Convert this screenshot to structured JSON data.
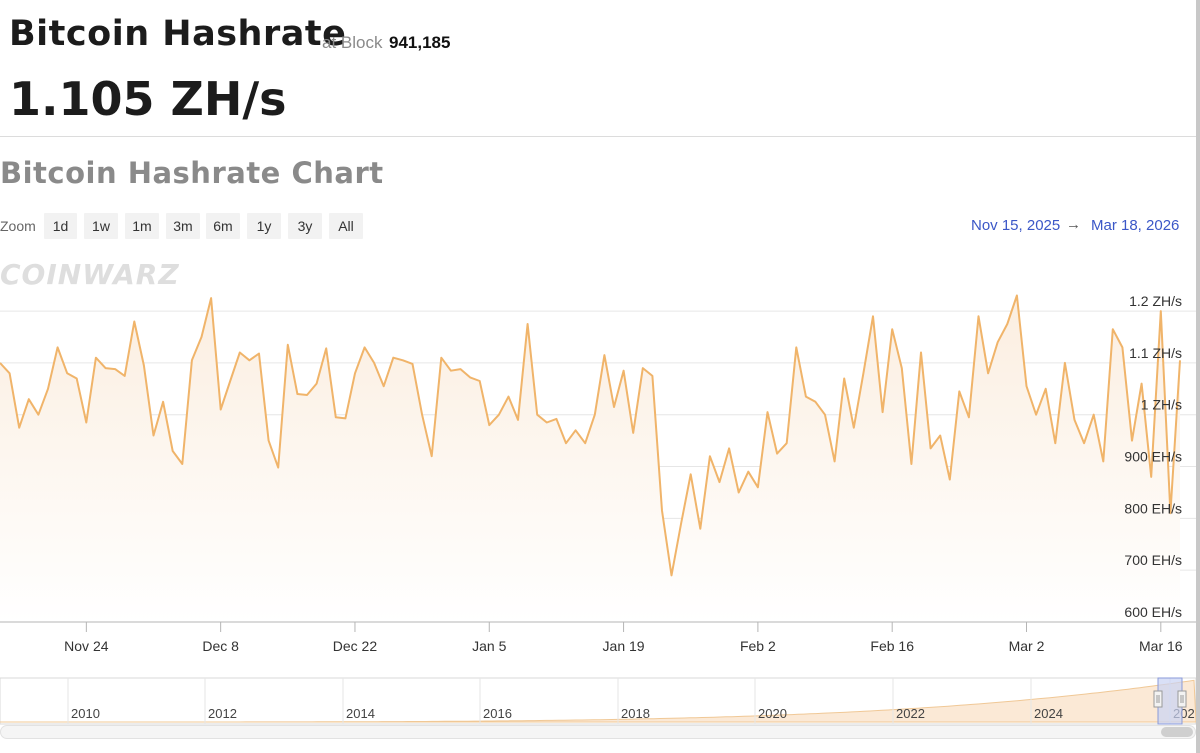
{
  "header": {
    "title": "Bitcoin Hashrate",
    "block_label": "at Block",
    "block_number": "941,185",
    "current_value": "1.105 ZH/s"
  },
  "chart_section": {
    "title": "Bitcoin Hashrate Chart",
    "zoom_label": "Zoom",
    "zoom_buttons": [
      "1d",
      "1w",
      "1m",
      "3m",
      "6m",
      "1y",
      "3y",
      "All"
    ],
    "range_from": "Nov 15, 2025",
    "range_arrow": "→",
    "range_to": "Mar 18, 2026",
    "watermark": "COINWARZ"
  },
  "colors": {
    "line": "#f0b46a",
    "fill_top": "#fbeee0",
    "accent_blue": "#3b57c7"
  },
  "chart_data": {
    "type": "area",
    "x_start": "2025-11-15",
    "x_end": "2026-03-18",
    "ylim": [
      600,
      1260
    ],
    "yticks": [
      600,
      700,
      800,
      900,
      1000,
      1100,
      1200
    ],
    "ytick_labels": [
      "600 EH/s",
      "700 EH/s",
      "800 EH/s",
      "900 EH/s",
      "1 ZH/s",
      "1.1 ZH/s",
      "1.2 ZH/s"
    ],
    "xticks": [
      "2025-11-24",
      "2025-12-08",
      "2025-12-22",
      "2026-01-05",
      "2026-01-19",
      "2026-02-02",
      "2026-02-16",
      "2026-03-02",
      "2026-03-16"
    ],
    "xtick_labels": [
      "Nov 24",
      "Dec 8",
      "Dec 22",
      "Jan 5",
      "Jan 19",
      "Feb 2",
      "Feb 16",
      "Mar 2",
      "Mar 16"
    ],
    "grid": true,
    "legend": "none",
    "series": [
      {
        "name": "",
        "points": [
          [
            "2025-11-15",
            1100
          ],
          [
            "2025-11-16",
            1080
          ],
          [
            "2025-11-17",
            975
          ],
          [
            "2025-11-18",
            1030
          ],
          [
            "2025-11-19",
            1000
          ],
          [
            "2025-11-20",
            1050
          ],
          [
            "2025-11-21",
            1130
          ],
          [
            "2025-11-22",
            1080
          ],
          [
            "2025-11-23",
            1070
          ],
          [
            "2025-11-24",
            985
          ],
          [
            "2025-11-25",
            1110
          ],
          [
            "2025-11-26",
            1090
          ],
          [
            "2025-11-27",
            1088
          ],
          [
            "2025-11-28",
            1075
          ],
          [
            "2025-11-29",
            1180
          ],
          [
            "2025-11-30",
            1095
          ],
          [
            "2025-12-01",
            960
          ],
          [
            "2025-12-02",
            1025
          ],
          [
            "2025-12-03",
            930
          ],
          [
            "2025-12-04",
            905
          ],
          [
            "2025-12-05",
            1105
          ],
          [
            "2025-12-06",
            1150
          ],
          [
            "2025-12-07",
            1225
          ],
          [
            "2025-12-08",
            1010
          ],
          [
            "2025-12-09",
            1065
          ],
          [
            "2025-12-10",
            1120
          ],
          [
            "2025-12-11",
            1105
          ],
          [
            "2025-12-12",
            1118
          ],
          [
            "2025-12-13",
            950
          ],
          [
            "2025-12-14",
            898
          ],
          [
            "2025-12-15",
            1135
          ],
          [
            "2025-12-16",
            1040
          ],
          [
            "2025-12-17",
            1038
          ],
          [
            "2025-12-18",
            1060
          ],
          [
            "2025-12-19",
            1128
          ],
          [
            "2025-12-20",
            995
          ],
          [
            "2025-12-21",
            993
          ],
          [
            "2025-12-22",
            1080
          ],
          [
            "2025-12-23",
            1130
          ],
          [
            "2025-12-24",
            1100
          ],
          [
            "2025-12-25",
            1055
          ],
          [
            "2025-12-26",
            1110
          ],
          [
            "2025-12-27",
            1105
          ],
          [
            "2025-12-28",
            1098
          ],
          [
            "2025-12-29",
            1000
          ],
          [
            "2025-12-30",
            920
          ],
          [
            "2025-12-31",
            1110
          ],
          [
            "2026-01-01",
            1085
          ],
          [
            "2026-01-02",
            1088
          ],
          [
            "2026-01-03",
            1072
          ],
          [
            "2026-01-04",
            1065
          ],
          [
            "2026-01-05",
            980
          ],
          [
            "2026-01-06",
            1000
          ],
          [
            "2026-01-07",
            1035
          ],
          [
            "2026-01-08",
            990
          ],
          [
            "2026-01-09",
            1175
          ],
          [
            "2026-01-10",
            1000
          ],
          [
            "2026-01-11",
            985
          ],
          [
            "2026-01-12",
            992
          ],
          [
            "2026-01-13",
            945
          ],
          [
            "2026-01-14",
            970
          ],
          [
            "2026-01-15",
            945
          ],
          [
            "2026-01-16",
            1000
          ],
          [
            "2026-01-17",
            1115
          ],
          [
            "2026-01-18",
            1015
          ],
          [
            "2026-01-19",
            1085
          ],
          [
            "2026-01-20",
            965
          ],
          [
            "2026-01-21",
            1090
          ],
          [
            "2026-01-22",
            1075
          ],
          [
            "2026-01-23",
            815
          ],
          [
            "2026-01-24",
            690
          ],
          [
            "2026-01-25",
            790
          ],
          [
            "2026-01-26",
            885
          ],
          [
            "2026-01-27",
            780
          ],
          [
            "2026-01-28",
            920
          ],
          [
            "2026-01-29",
            870
          ],
          [
            "2026-01-30",
            935
          ],
          [
            "2026-01-31",
            850
          ],
          [
            "2026-02-01",
            890
          ],
          [
            "2026-02-02",
            860
          ],
          [
            "2026-02-03",
            1005
          ],
          [
            "2026-02-04",
            925
          ],
          [
            "2026-02-05",
            945
          ],
          [
            "2026-02-06",
            1130
          ],
          [
            "2026-02-07",
            1035
          ],
          [
            "2026-02-08",
            1025
          ],
          [
            "2026-02-09",
            1000
          ],
          [
            "2026-02-10",
            910
          ],
          [
            "2026-02-11",
            1070
          ],
          [
            "2026-02-12",
            975
          ],
          [
            "2026-02-13",
            1080
          ],
          [
            "2026-02-14",
            1190
          ],
          [
            "2026-02-15",
            1005
          ],
          [
            "2026-02-16",
            1165
          ],
          [
            "2026-02-17",
            1090
          ],
          [
            "2026-02-18",
            905
          ],
          [
            "2026-02-19",
            1120
          ],
          [
            "2026-02-20",
            935
          ],
          [
            "2026-02-21",
            960
          ],
          [
            "2026-02-22",
            875
          ],
          [
            "2026-02-23",
            1045
          ],
          [
            "2026-02-24",
            995
          ],
          [
            "2026-02-25",
            1190
          ],
          [
            "2026-02-26",
            1080
          ],
          [
            "2026-02-27",
            1140
          ],
          [
            "2026-02-28",
            1175
          ],
          [
            "2026-03-01",
            1230
          ],
          [
            "2026-03-02",
            1055
          ],
          [
            "2026-03-03",
            1000
          ],
          [
            "2026-03-04",
            1050
          ],
          [
            "2026-03-05",
            945
          ],
          [
            "2026-03-06",
            1100
          ],
          [
            "2026-03-07",
            990
          ],
          [
            "2026-03-08",
            945
          ],
          [
            "2026-03-09",
            1000
          ],
          [
            "2026-03-10",
            910
          ],
          [
            "2026-03-11",
            1165
          ],
          [
            "2026-03-12",
            1130
          ],
          [
            "2026-03-13",
            950
          ],
          [
            "2026-03-14",
            1060
          ],
          [
            "2026-03-15",
            880
          ],
          [
            "2026-03-16",
            1200
          ],
          [
            "2026-03-17",
            810
          ],
          [
            "2026-03-18",
            1105
          ]
        ]
      }
    ],
    "navigator": {
      "tick_labels": [
        "2010",
        "2012",
        "2014",
        "2016",
        "2018",
        "2020",
        "2022",
        "2024",
        "202"
      ]
    }
  }
}
